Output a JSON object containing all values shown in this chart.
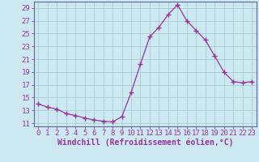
{
  "x": [
    0,
    1,
    2,
    3,
    4,
    5,
    6,
    7,
    8,
    9,
    10,
    11,
    12,
    13,
    14,
    15,
    16,
    17,
    18,
    19,
    20,
    21,
    22,
    23
  ],
  "y": [
    14.0,
    13.5,
    13.2,
    12.5,
    12.2,
    11.8,
    11.5,
    11.3,
    11.2,
    12.0,
    15.8,
    20.2,
    24.5,
    26.0,
    28.0,
    29.5,
    27.0,
    25.5,
    24.0,
    21.5,
    19.0,
    17.5,
    17.3,
    17.5
  ],
  "line_color": "#993399",
  "marker": "+",
  "bg_color": "#cce8f0",
  "grid_color": "#aacccc",
  "xlabel": "Windchill (Refroidissement éolien,°C)",
  "xlabel_color": "#993399",
  "tick_color": "#993399",
  "ylim": [
    10.5,
    30
  ],
  "xlim": [
    -0.5,
    23.5
  ],
  "yticks": [
    11,
    13,
    15,
    17,
    19,
    21,
    23,
    25,
    27,
    29
  ],
  "xticks": [
    0,
    1,
    2,
    3,
    4,
    5,
    6,
    7,
    8,
    9,
    10,
    11,
    12,
    13,
    14,
    15,
    16,
    17,
    18,
    19,
    20,
    21,
    22,
    23
  ],
  "font_size": 6.5
}
